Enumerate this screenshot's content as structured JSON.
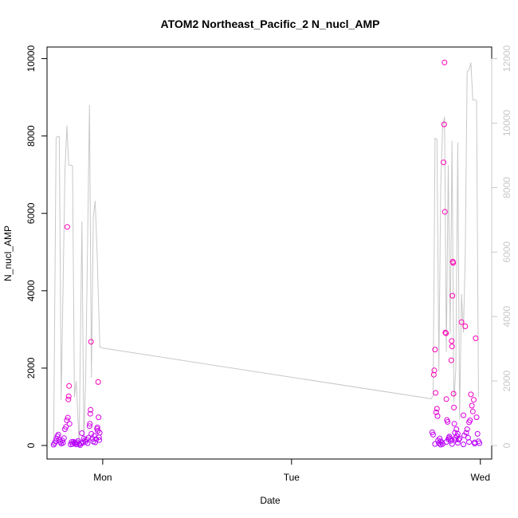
{
  "chart_data": {
    "type": "scatter",
    "title": "ATOM2 Northeast_Pacific_2 N_nucl_AMP",
    "xlabel": "Date",
    "ylabel": "N_nucl_AMP",
    "x_ticks": [
      {
        "label": "Mon",
        "t": 0
      },
      {
        "label": "Tue",
        "t": 1
      },
      {
        "label": "Wed",
        "t": 2
      }
    ],
    "xlim": [
      -0.295,
      2.06
    ],
    "ylim": [
      -350,
      10300
    ],
    "y_ticks": [
      0,
      2000,
      4000,
      6000,
      8000,
      10000
    ],
    "y2lim": [
      -420,
      12360
    ],
    "y2_ticks": [
      0,
      2000,
      4000,
      6000,
      8000,
      10000,
      12000
    ],
    "colors": {
      "points_high": "#ff00b4",
      "points_low": "#b400ff",
      "line": "#c8c8c8",
      "right_axis": "#c8c8c8"
    },
    "series": [
      {
        "kind": "points",
        "points": [
          [
            -0.26,
            20
          ],
          [
            -0.255,
            60
          ],
          [
            -0.25,
            110
          ],
          [
            -0.245,
            180
          ],
          [
            -0.24,
            240
          ],
          [
            -0.235,
            280
          ],
          [
            -0.23,
            150
          ],
          [
            -0.225,
            90
          ],
          [
            -0.22,
            50
          ],
          [
            -0.215,
            130
          ],
          [
            -0.21,
            70
          ],
          [
            -0.205,
            190
          ],
          [
            -0.2,
            420
          ],
          [
            -0.195,
            480
          ],
          [
            -0.19,
            650
          ],
          [
            -0.188,
            5650
          ],
          [
            -0.185,
            720
          ],
          [
            -0.182,
            1190
          ],
          [
            -0.18,
            1270
          ],
          [
            -0.178,
            1540
          ],
          [
            -0.176,
            560
          ],
          [
            -0.17,
            30
          ],
          [
            -0.165,
            90
          ],
          [
            -0.16,
            40
          ],
          [
            -0.155,
            100
          ],
          [
            -0.15,
            70
          ],
          [
            -0.145,
            60
          ],
          [
            -0.14,
            30
          ],
          [
            -0.135,
            80
          ],
          [
            -0.13,
            120
          ],
          [
            -0.125,
            40
          ],
          [
            -0.12,
            10
          ],
          [
            -0.115,
            60
          ],
          [
            -0.11,
            320
          ],
          [
            -0.105,
            70
          ],
          [
            -0.1,
            180
          ],
          [
            -0.095,
            130
          ],
          [
            -0.09,
            100
          ],
          [
            -0.085,
            150
          ],
          [
            -0.08,
            60
          ],
          [
            -0.075,
            200
          ],
          [
            -0.07,
            500
          ],
          [
            -0.068,
            560
          ],
          [
            -0.066,
            820
          ],
          [
            -0.064,
            920
          ],
          [
            -0.062,
            2680
          ],
          [
            -0.06,
            300
          ],
          [
            -0.055,
            180
          ],
          [
            -0.05,
            100
          ],
          [
            -0.045,
            250
          ],
          [
            -0.04,
            80
          ],
          [
            -0.035,
            160
          ],
          [
            -0.03,
            430
          ],
          [
            -0.028,
            470
          ],
          [
            -0.026,
            380
          ],
          [
            -0.024,
            1640
          ],
          [
            -0.022,
            730
          ],
          [
            -0.02,
            210
          ],
          [
            -0.018,
            140
          ],
          [
            -0.016,
            330
          ],
          [
            1.745,
            340
          ],
          [
            1.75,
            280
          ],
          [
            1.753,
            1830
          ],
          [
            1.756,
            1940
          ],
          [
            1.76,
            2480
          ],
          [
            1.763,
            1360
          ],
          [
            1.766,
            860
          ],
          [
            1.77,
            950
          ],
          [
            1.773,
            760
          ],
          [
            1.776,
            130
          ],
          [
            1.78,
            60
          ],
          [
            1.785,
            180
          ],
          [
            1.79,
            110
          ],
          [
            1.795,
            80
          ],
          [
            1.8,
            40
          ],
          [
            1.805,
            7320
          ],
          [
            1.808,
            8300
          ],
          [
            1.81,
            9900
          ],
          [
            1.812,
            6040
          ],
          [
            1.815,
            2920
          ],
          [
            1.818,
            2900
          ],
          [
            1.82,
            1200
          ],
          [
            1.823,
            660
          ],
          [
            1.826,
            610
          ],
          [
            1.83,
            160
          ],
          [
            1.833,
            200
          ],
          [
            1.836,
            230
          ],
          [
            1.84,
            170
          ],
          [
            1.843,
            120
          ],
          [
            1.846,
            2200
          ],
          [
            1.848,
            2700
          ],
          [
            1.85,
            2560
          ],
          [
            1.852,
            3870
          ],
          [
            1.854,
            4750
          ],
          [
            1.856,
            4720
          ],
          [
            1.858,
            1340
          ],
          [
            1.86,
            980
          ],
          [
            1.862,
            560
          ],
          [
            1.865,
            330
          ],
          [
            1.868,
            200
          ],
          [
            1.87,
            150
          ],
          [
            1.873,
            420
          ],
          [
            1.876,
            240
          ],
          [
            1.88,
            300
          ],
          [
            1.885,
            150
          ],
          [
            1.89,
            180
          ],
          [
            1.9,
            3190
          ],
          [
            1.91,
            780
          ],
          [
            1.915,
            260
          ],
          [
            1.92,
            3080
          ],
          [
            1.925,
            330
          ],
          [
            1.93,
            420
          ],
          [
            1.935,
            200
          ],
          [
            1.94,
            600
          ],
          [
            1.945,
            650
          ],
          [
            1.95,
            1320
          ],
          [
            1.955,
            1030
          ],
          [
            1.96,
            880
          ],
          [
            1.965,
            1180
          ],
          [
            1.97,
            80
          ],
          [
            1.975,
            2770
          ],
          [
            1.98,
            730
          ],
          [
            1.985,
            300
          ],
          [
            1.99,
            110
          ],
          [
            1.995,
            60
          ],
          [
            1.76,
            40
          ],
          [
            1.79,
            20
          ],
          [
            1.82,
            90
          ],
          [
            1.85,
            40
          ],
          [
            1.88,
            70
          ],
          [
            1.91,
            30
          ],
          [
            1.94,
            90
          ],
          [
            1.97,
            50
          ]
        ]
      },
      {
        "kind": "line",
        "axis": "right",
        "points": [
          [
            -0.26,
            20
          ],
          [
            -0.247,
            9550
          ],
          [
            -0.24,
            9580
          ],
          [
            -0.23,
            9590
          ],
          [
            -0.22,
            1400
          ],
          [
            -0.2,
            8500
          ],
          [
            -0.19,
            9920
          ],
          [
            -0.18,
            8700
          ],
          [
            -0.17,
            8700
          ],
          [
            -0.16,
            8680
          ],
          [
            -0.15,
            1500
          ],
          [
            -0.14,
            2000
          ],
          [
            -0.125,
            20
          ],
          [
            -0.11,
            6950
          ],
          [
            -0.1,
            20
          ],
          [
            -0.09,
            2200
          ],
          [
            -0.07,
            10560
          ],
          [
            -0.06,
            2100
          ],
          [
            -0.05,
            7100
          ],
          [
            -0.04,
            7590
          ],
          [
            -0.03,
            6000
          ],
          [
            -0.015,
            3050
          ],
          [
            0.0,
            3020
          ],
          [
            1.74,
            1450
          ],
          [
            1.75,
            1550
          ],
          [
            1.76,
            9530
          ],
          [
            1.765,
            9500
          ],
          [
            1.77,
            9500
          ],
          [
            1.78,
            2300
          ],
          [
            1.79,
            8000
          ],
          [
            1.8,
            9850
          ],
          [
            1.81,
            10200
          ],
          [
            1.82,
            2900
          ],
          [
            1.83,
            8700
          ],
          [
            1.84,
            3450
          ],
          [
            1.85,
            9450
          ],
          [
            1.86,
            1350
          ],
          [
            1.87,
            2400
          ],
          [
            1.88,
            9400
          ],
          [
            1.89,
            800
          ],
          [
            1.9,
            4700
          ],
          [
            1.91,
            3500
          ],
          [
            1.92,
            5900
          ],
          [
            1.93,
            11600
          ],
          [
            1.94,
            11650
          ],
          [
            1.95,
            11880
          ],
          [
            1.96,
            10710
          ],
          [
            1.97,
            10730
          ],
          [
            1.98,
            10700
          ],
          [
            1.99,
            1500
          ]
        ]
      }
    ]
  }
}
